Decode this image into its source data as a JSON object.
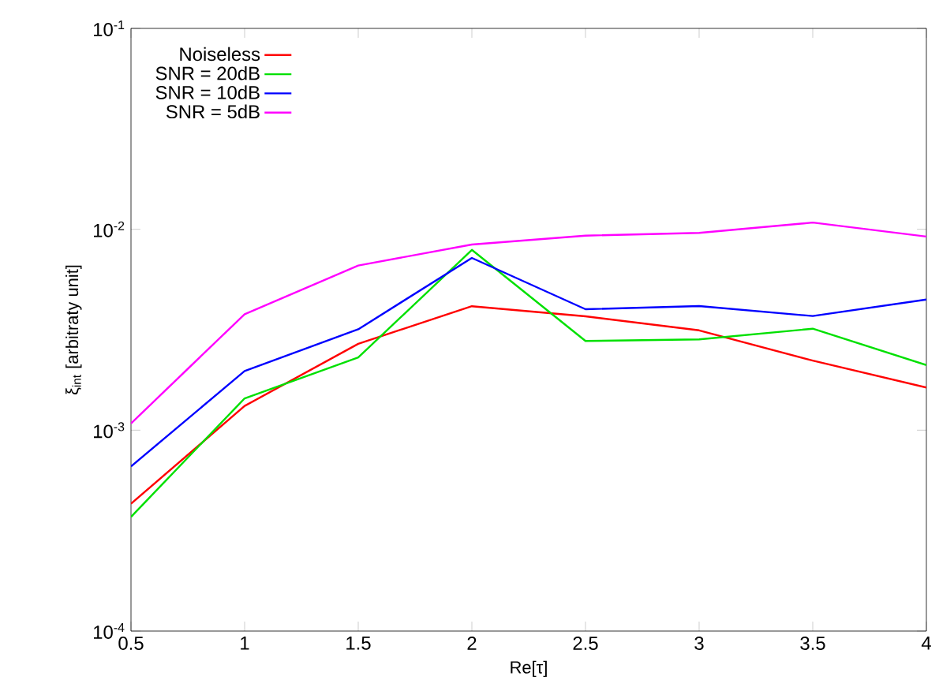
{
  "chart_data": {
    "type": "line",
    "xlabel": "Re[τ]",
    "ylabel": "ξ$_{int}$ [arbitraty unit]",
    "x": [
      0.5,
      1,
      1.5,
      2,
      2.5,
      3,
      3.5,
      4
    ],
    "series": [
      {
        "name": "Noiseless",
        "color": "#ff0000",
        "values": [
          0.00043,
          0.00132,
          0.00269,
          0.00414,
          0.00369,
          0.00314,
          0.00222,
          0.00163
        ]
      },
      {
        "name": "SNR = 20dB",
        "color": "#00e000",
        "values": [
          0.00037,
          0.00144,
          0.0023,
          0.0079,
          0.00278,
          0.00283,
          0.0032,
          0.00211
        ]
      },
      {
        "name": "SNR = 10dB",
        "color": "#0000ff",
        "values": [
          0.00066,
          0.00197,
          0.00318,
          0.0072,
          0.004,
          0.00415,
          0.0037,
          0.00447
        ]
      },
      {
        "name": "SNR = 5dB",
        "color": "#ff00ff",
        "values": [
          0.00108,
          0.00378,
          0.0066,
          0.0084,
          0.0093,
          0.0096,
          0.0108,
          0.0092
        ]
      }
    ],
    "xlim": [
      0.5,
      4
    ],
    "ylim": [
      0.0001,
      0.1
    ],
    "xticks": [
      {
        "value": 0.5,
        "label": "0.5"
      },
      1,
      {
        "value": 1.5,
        "label": "1.5"
      },
      2,
      {
        "value": 2.5,
        "label": "2.5"
      },
      3,
      {
        "value": 3.5,
        "label": "3.5"
      },
      4
    ],
    "yticks": [
      {
        "value": 0.0001,
        "label": "10$^{-4}$"
      },
      {
        "value": 0.001,
        "label": "10$^{-3}$"
      },
      {
        "value": 0.01,
        "label": "10$^{-2}$"
      },
      {
        "value": 0.1,
        "label": "10$^{-1}$"
      }
    ],
    "log": "y",
    "grid": false,
    "legend": "top left",
    "marker": "none",
    "line_style": "solid"
  }
}
